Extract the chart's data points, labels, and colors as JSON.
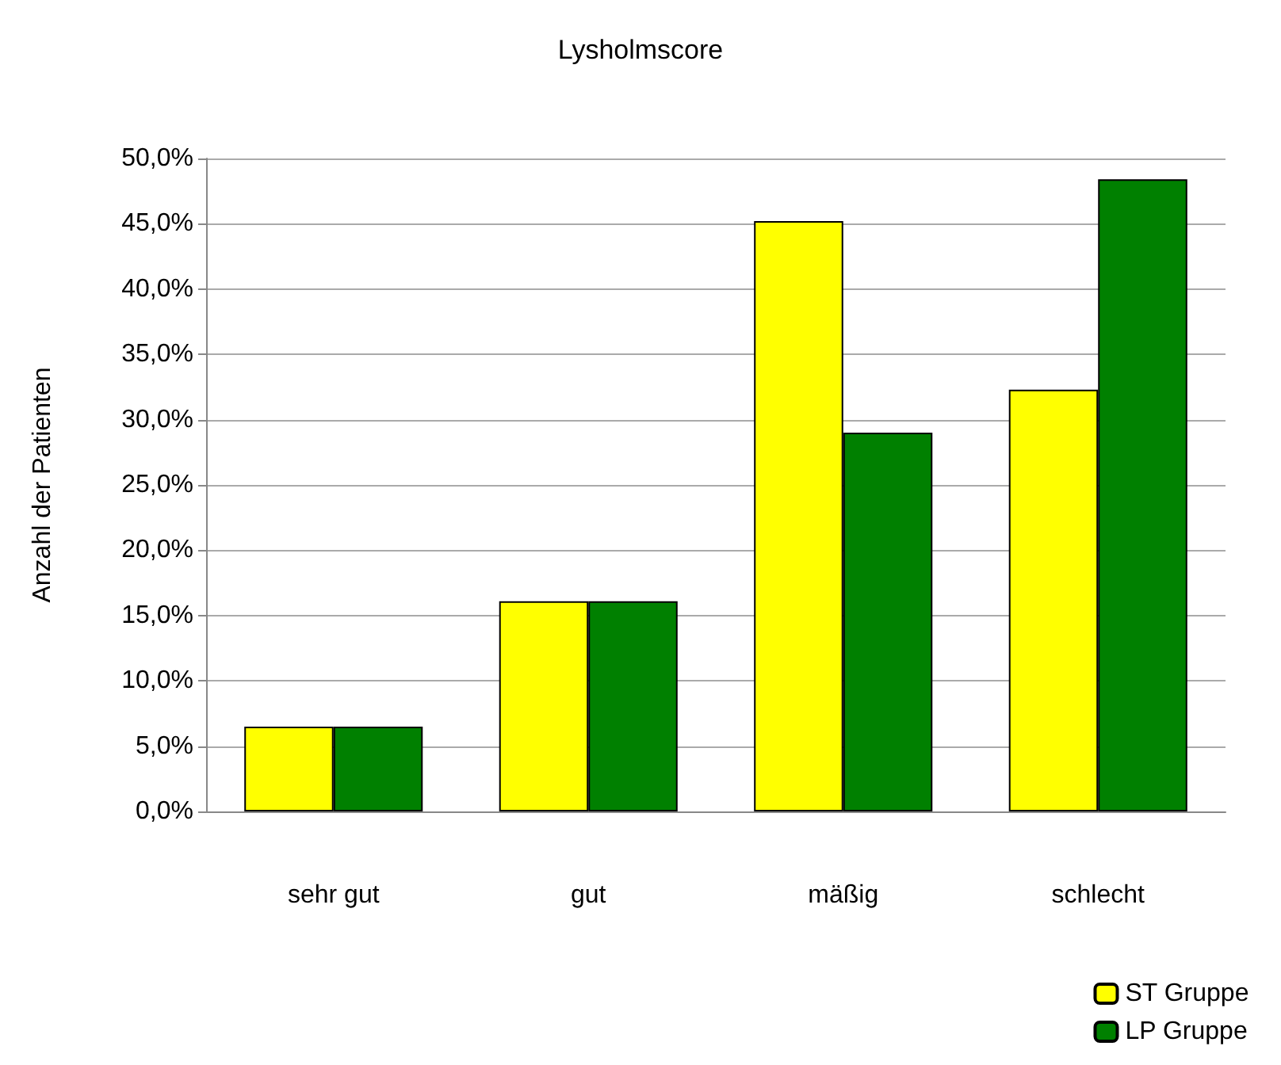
{
  "chart_data": {
    "type": "bar",
    "title": "Lysholmscore",
    "ylabel": "Anzahl der Patienten",
    "categories": [
      "sehr gut",
      "gut",
      "mäßig",
      "schlecht"
    ],
    "series": [
      {
        "name": "ST Gruppe",
        "color": "#ffff00",
        "values": [
          6.5,
          16.1,
          45.2,
          32.3
        ]
      },
      {
        "name": "LP Gruppe",
        "color": "#008000",
        "values": [
          6.5,
          16.1,
          29.0,
          48.4
        ]
      }
    ],
    "ylim": [
      0,
      50
    ],
    "yticks": [
      {
        "value": 0,
        "label": "0,0%"
      },
      {
        "value": 5,
        "label": "5,0%"
      },
      {
        "value": 10,
        "label": "10,0%"
      },
      {
        "value": 15,
        "label": "15,0%"
      },
      {
        "value": 20,
        "label": "20,0%"
      },
      {
        "value": 25,
        "label": "25,0%"
      },
      {
        "value": 30,
        "label": "30,0%"
      },
      {
        "value": 35,
        "label": "35,0%"
      },
      {
        "value": 40,
        "label": "40,0%"
      },
      {
        "value": 45,
        "label": "45,0%"
      },
      {
        "value": 50,
        "label": "50,0%"
      }
    ],
    "grid": "y",
    "legend": "bottom right"
  }
}
